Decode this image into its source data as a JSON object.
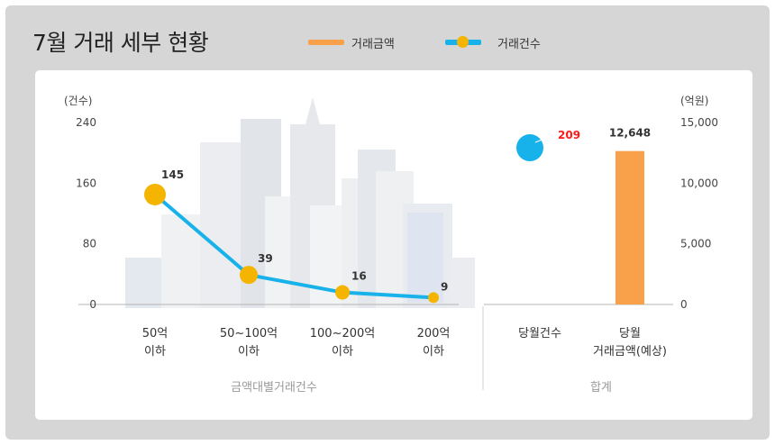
{
  "chart_data": {
    "type": "bar",
    "title": "7월 거래 세부 현황",
    "legend": [
      {
        "name": "거래금액",
        "kind": "bar",
        "color": "#f9a14a"
      },
      {
        "name": "거래건수",
        "kind": "line",
        "color": "#17b2e9",
        "marker_color": "#f4b400"
      }
    ],
    "left_axis": {
      "unit_label": "(건수)",
      "ticks": [
        "240",
        "160",
        "80",
        "0"
      ],
      "ylim": [
        0,
        240
      ]
    },
    "right_axis": {
      "unit_label": "(억원)",
      "ticks": [
        "15,000",
        "10,000",
        "5,000",
        "0"
      ],
      "ylim": [
        0,
        15000
      ]
    },
    "groups": [
      {
        "label": "금액대별거래건수",
        "categories": [
          [
            "50억",
            "이하"
          ],
          [
            "50~100억",
            "이하"
          ],
          [
            "100~200억",
            "이하"
          ],
          [
            "200억",
            "이하"
          ]
        ]
      },
      {
        "label": "합계",
        "categories": [
          [
            "당월건수"
          ],
          [
            "당월",
            "거래금액(예상)"
          ]
        ]
      }
    ],
    "series": [
      {
        "name": "거래건수",
        "type": "line",
        "values": [
          145,
          39,
          16,
          9
        ],
        "value_labels": [
          "145",
          "39",
          "16",
          "9"
        ]
      },
      {
        "name": "당월건수",
        "type": "pie",
        "value": 209,
        "value_label": "209",
        "label_color": "#ff1a1a"
      },
      {
        "name": "거래금액",
        "type": "bar",
        "value": 12648,
        "value_label": "12,648"
      }
    ]
  }
}
